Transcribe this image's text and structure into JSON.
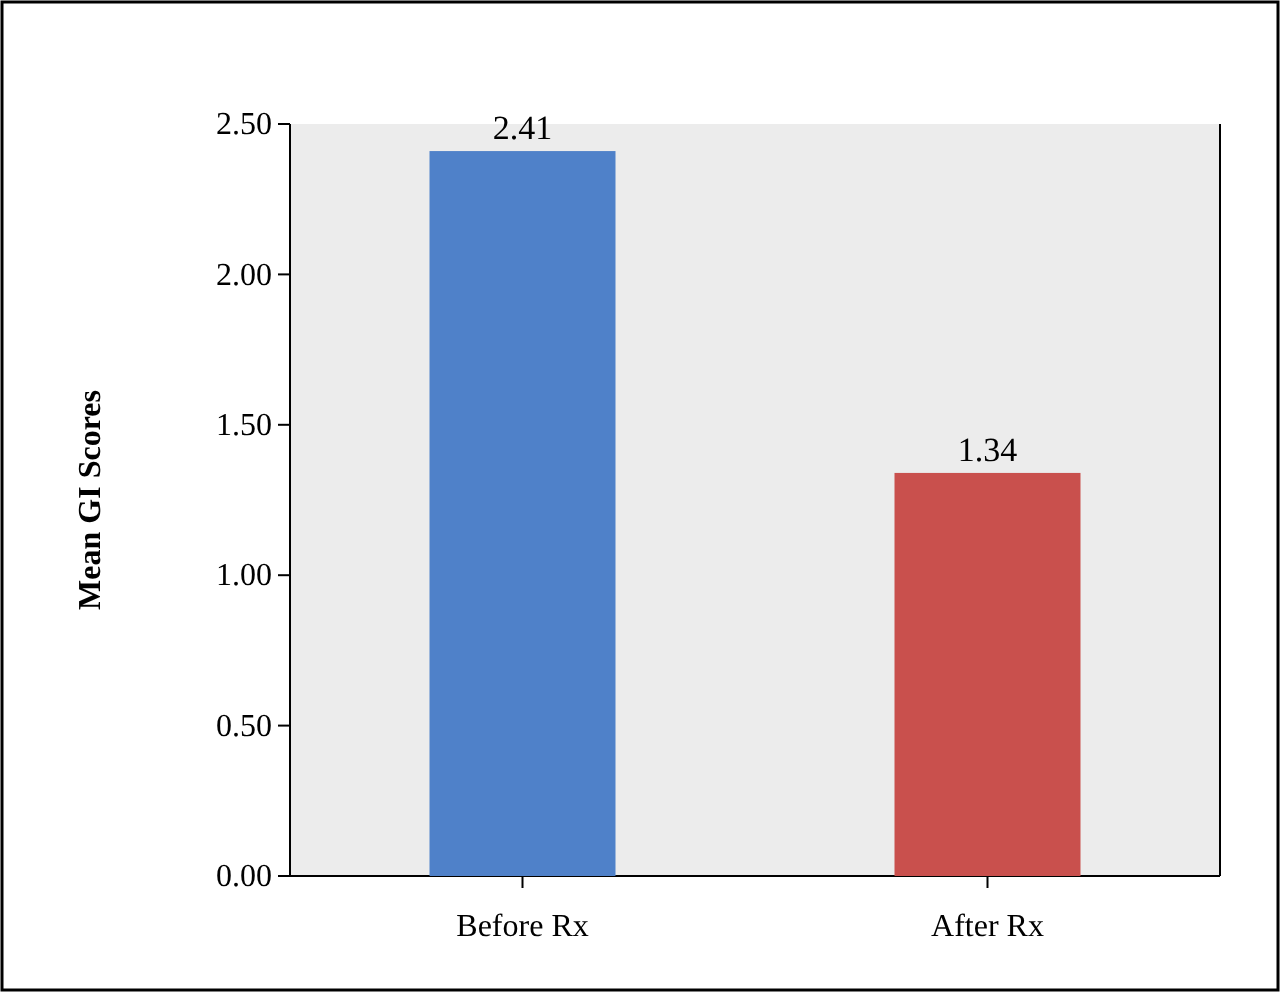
{
  "chart_data": {
    "type": "bar",
    "ylabel": "Mean GI Scores",
    "categories": [
      "Before Rx",
      "After Rx"
    ],
    "values": [
      2.41,
      1.34
    ],
    "colors": [
      "#4f81c9",
      "#c9504d"
    ],
    "ylim": [
      0,
      2.5
    ],
    "yticks": [
      {
        "value": 0,
        "label": "0.00"
      },
      {
        "value": 0.5,
        "label": "0.50"
      },
      {
        "value": 1,
        "label": "1.00"
      },
      {
        "value": 1.5,
        "label": "1.50"
      },
      {
        "value": 2,
        "label": "2.00"
      },
      {
        "value": 2.5,
        "label": "2.50"
      }
    ],
    "data_labels": true,
    "grid": false
  }
}
